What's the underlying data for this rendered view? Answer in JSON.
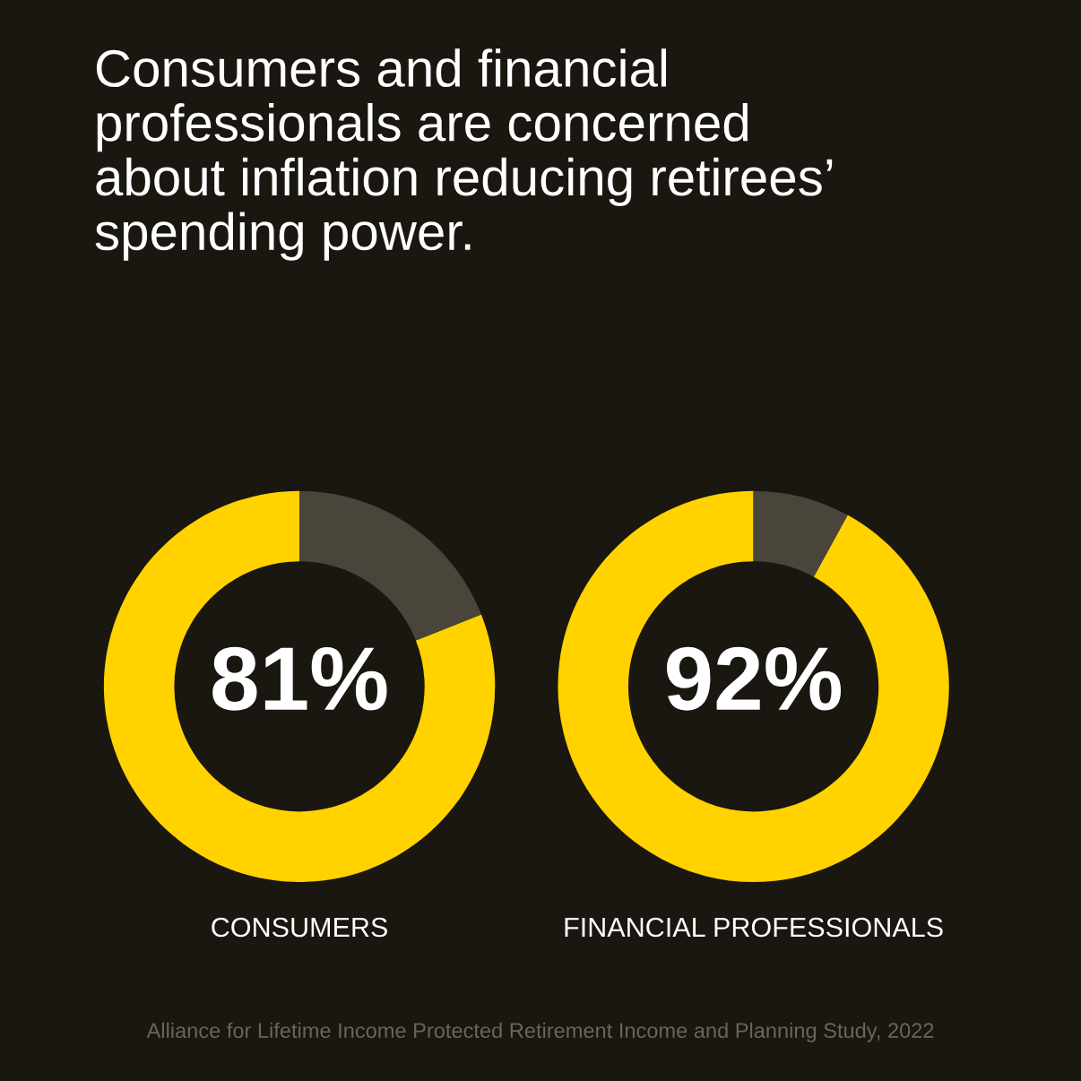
{
  "chart_data": [
    {
      "type": "donut",
      "title": "Consumers and financial\nprofessionals are concerned\nabout inflation reducing retirees’\nspending power.",
      "xlabel": "CONSUMERS",
      "categories": [
        null,
        null
      ],
      "values": [
        81,
        19
      ],
      "colors": [
        "#ffd200",
        "#4a453b"
      ],
      "value_labels": [
        "81%",
        null
      ],
      "annotations": [
        "Alliance for Lifetime Income Protected Retirement Income and Planning Study, 2022"
      ]
    },
    {
      "type": "donut",
      "xlabel": "FINANCIAL PROFESSIONALS",
      "categories": [
        null,
        null
      ],
      "values": [
        92,
        8
      ],
      "colors": [
        "#ffd200",
        "#4a453b"
      ],
      "value_labels": [
        "92%",
        null
      ]
    }
  ]
}
